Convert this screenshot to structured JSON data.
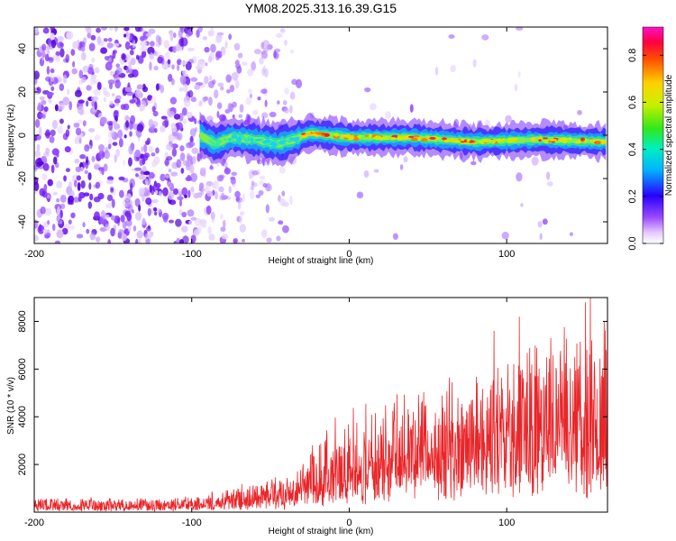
{
  "title": "YM08.2025.313.16.39.G15",
  "chart_data": [
    {
      "type": "heatmap",
      "name": "spectrogram",
      "xlabel": "Height of straight line (km)",
      "ylabel": "Frequency (Hz)",
      "xlim": [
        -200,
        164
      ],
      "ylim": [
        -50,
        50
      ],
      "xticks": [
        -200,
        -100,
        0,
        100
      ],
      "yticks": [
        -40,
        -20,
        0,
        20,
        40
      ],
      "ridge": {
        "description": "signal ridge near 0 Hz from about -100 km to 164 km",
        "points": [
          {
            "x": -95,
            "y": 0
          },
          {
            "x": -85,
            "y": -4
          },
          {
            "x": -75,
            "y": -1
          },
          {
            "x": -60,
            "y": -2
          },
          {
            "x": -45,
            "y": -4
          },
          {
            "x": -35,
            "y": -2
          },
          {
            "x": -25,
            "y": 1
          },
          {
            "x": 0,
            "y": -1
          },
          {
            "x": 40,
            "y": -1
          },
          {
            "x": 80,
            "y": -3
          },
          {
            "x": 120,
            "y": -2
          },
          {
            "x": 164,
            "y": -3
          }
        ]
      },
      "colorbar": {
        "label": "Normalized spectral amplitude",
        "range": [
          0,
          0.92
        ],
        "ticks": [
          "0.0",
          "0.2",
          "0.4",
          "0.6",
          "0.8"
        ],
        "tick_values": [
          0,
          0.2,
          0.4,
          0.6,
          0.8
        ]
      }
    },
    {
      "type": "line",
      "name": "snr",
      "xlabel": "Height of straight line (km)",
      "ylabel": "SNR (10 * v/v)",
      "xlim": [
        -200,
        164
      ],
      "ylim": [
        0,
        9000
      ],
      "xticks": [
        -200,
        -100,
        0,
        100
      ],
      "yticks": [
        2000,
        4000,
        6000,
        8000
      ],
      "color": "#e8262a",
      "envelope": {
        "x": [
          -200,
          -160,
          -120,
          -100,
          -80,
          -60,
          -40,
          -30,
          -20,
          -10,
          0,
          20,
          40,
          60,
          80,
          100,
          120,
          140,
          164
        ],
        "base": [
          120,
          120,
          130,
          150,
          200,
          300,
          400,
          500,
          700,
          900,
          1100,
          1300,
          1500,
          1600,
          1700,
          1800,
          1900,
          2000,
          2100
        ],
        "upper": [
          550,
          550,
          550,
          650,
          900,
          1200,
          1500,
          2000,
          3000,
          3700,
          4000,
          4500,
          4800,
          5300,
          5800,
          6500,
          6800,
          7200,
          7600
        ]
      },
      "peaks": [
        {
          "x": 92,
          "y": 7600
        },
        {
          "x": 108,
          "y": 8200
        },
        {
          "x": 128,
          "y": 7300
        },
        {
          "x": 150,
          "y": 8800
        },
        {
          "x": 153,
          "y": 9000
        },
        {
          "x": 162,
          "y": 8000
        }
      ]
    }
  ]
}
